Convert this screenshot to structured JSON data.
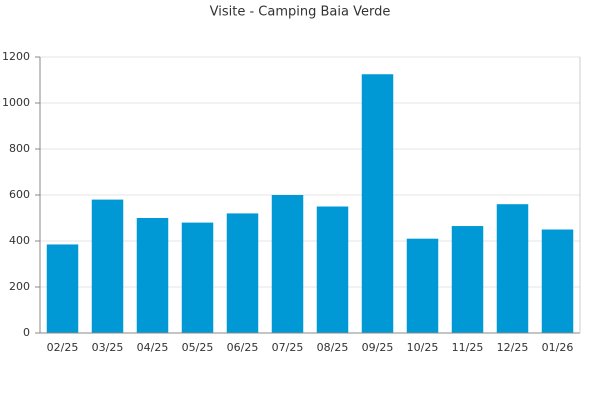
{
  "chart_data": {
    "type": "bar",
    "title": "Visite - Camping Baia Verde",
    "categories": [
      "02/25",
      "03/25",
      "04/25",
      "05/25",
      "06/25",
      "07/25",
      "08/25",
      "09/25",
      "10/25",
      "11/25",
      "12/25",
      "01/26"
    ],
    "values": [
      385,
      580,
      500,
      480,
      520,
      600,
      550,
      1125,
      410,
      465,
      560,
      450
    ],
    "color": "#0099d6",
    "ylim": [
      0,
      1200
    ],
    "yticks": [
      0,
      200,
      400,
      600,
      800,
      1000,
      1200
    ],
    "grid": true
  }
}
